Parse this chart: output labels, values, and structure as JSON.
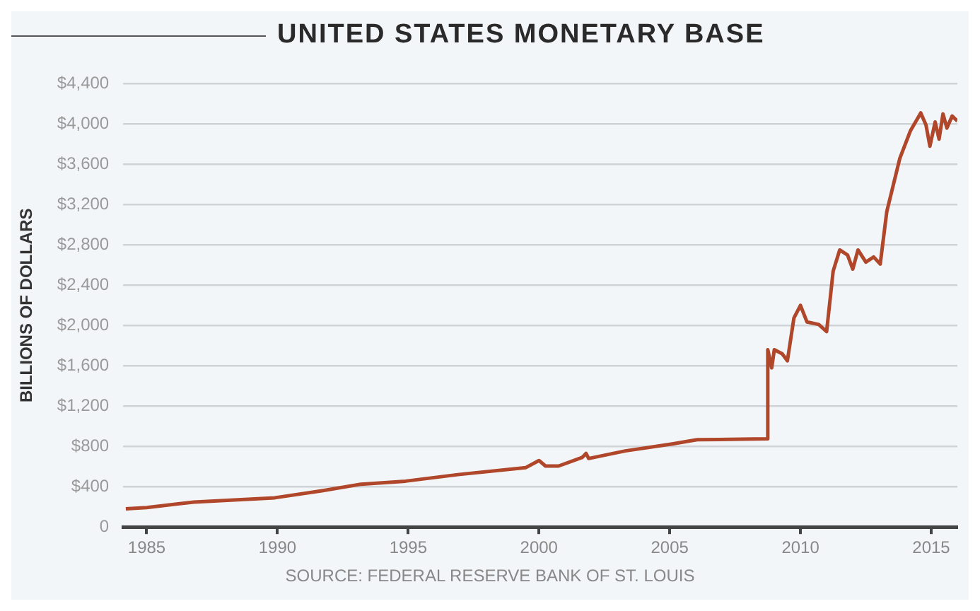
{
  "chart_data": {
    "type": "line",
    "title": "UNITED STATES MONETARY BASE",
    "ylabel": "BILLIONS OF DOLLARS",
    "annotations": [
      "SOURCE: FEDERAL RESERVE BANK OF ST. LOUIS"
    ],
    "x": [
      1984.2,
      1985,
      1986.8,
      1989.9,
      1991.7,
      1993.2,
      1994.9,
      1996.9,
      1999.5,
      2000,
      2000.25,
      2000.75,
      2001.65,
      2001.8,
      2001.9,
      2003.3,
      2005.1,
      2006.05,
      2008.7,
      2008.75,
      2008.9,
      2009,
      2009.3,
      2009.5,
      2009.75,
      2010,
      2010.25,
      2010.7,
      2011,
      2011.25,
      2011.5,
      2011.8,
      2012,
      2012.2,
      2012.5,
      2012.8,
      2013.05,
      2013.3,
      2013.8,
      2014.2,
      2014.6,
      2014.8,
      2014.95,
      2015.15,
      2015.3,
      2015.45,
      2015.6,
      2015.8,
      2016
    ],
    "series": [
      {
        "color": "#b0472b",
        "values": [
          180,
          193,
          247,
          290,
          360,
          425,
          455,
          520,
          590,
          660,
          605,
          605,
          690,
          730,
          680,
          755,
          825,
          866,
          875,
          1760,
          1580,
          1760,
          1720,
          1650,
          2075,
          2200,
          2035,
          2010,
          1940,
          2540,
          2750,
          2700,
          2560,
          2750,
          2630,
          2680,
          2610,
          3130,
          3660,
          3930,
          4110,
          3990,
          3780,
          4020,
          3850,
          4100,
          3960,
          4080,
          4030
        ]
      }
    ],
    "xlim": [
      1984.1,
      2016
    ],
    "xticks": [
      1985,
      1990,
      1995,
      2000,
      2005,
      2010,
      2015
    ],
    "ylim": [
      0,
      4400
    ],
    "yticks": [
      0,
      {
        "value": 400,
        "label": "$400"
      },
      {
        "value": 800,
        "label": "$800"
      },
      {
        "value": 1200,
        "label": "$1,200"
      },
      {
        "value": 1600,
        "label": "$1,600"
      },
      {
        "value": 2000,
        "label": "$2,000"
      },
      {
        "value": 2400,
        "label": "$2,400"
      },
      {
        "value": 2800,
        "label": "$2,800"
      },
      {
        "value": 3200,
        "label": "$3,200"
      },
      {
        "value": 3600,
        "label": "$3,600"
      },
      {
        "value": 4000,
        "label": "$4,000"
      },
      {
        "value": 4400,
        "label": "$4,400"
      }
    ],
    "grid": "y",
    "legend": false,
    "marker": "none",
    "line_style": "solid"
  }
}
